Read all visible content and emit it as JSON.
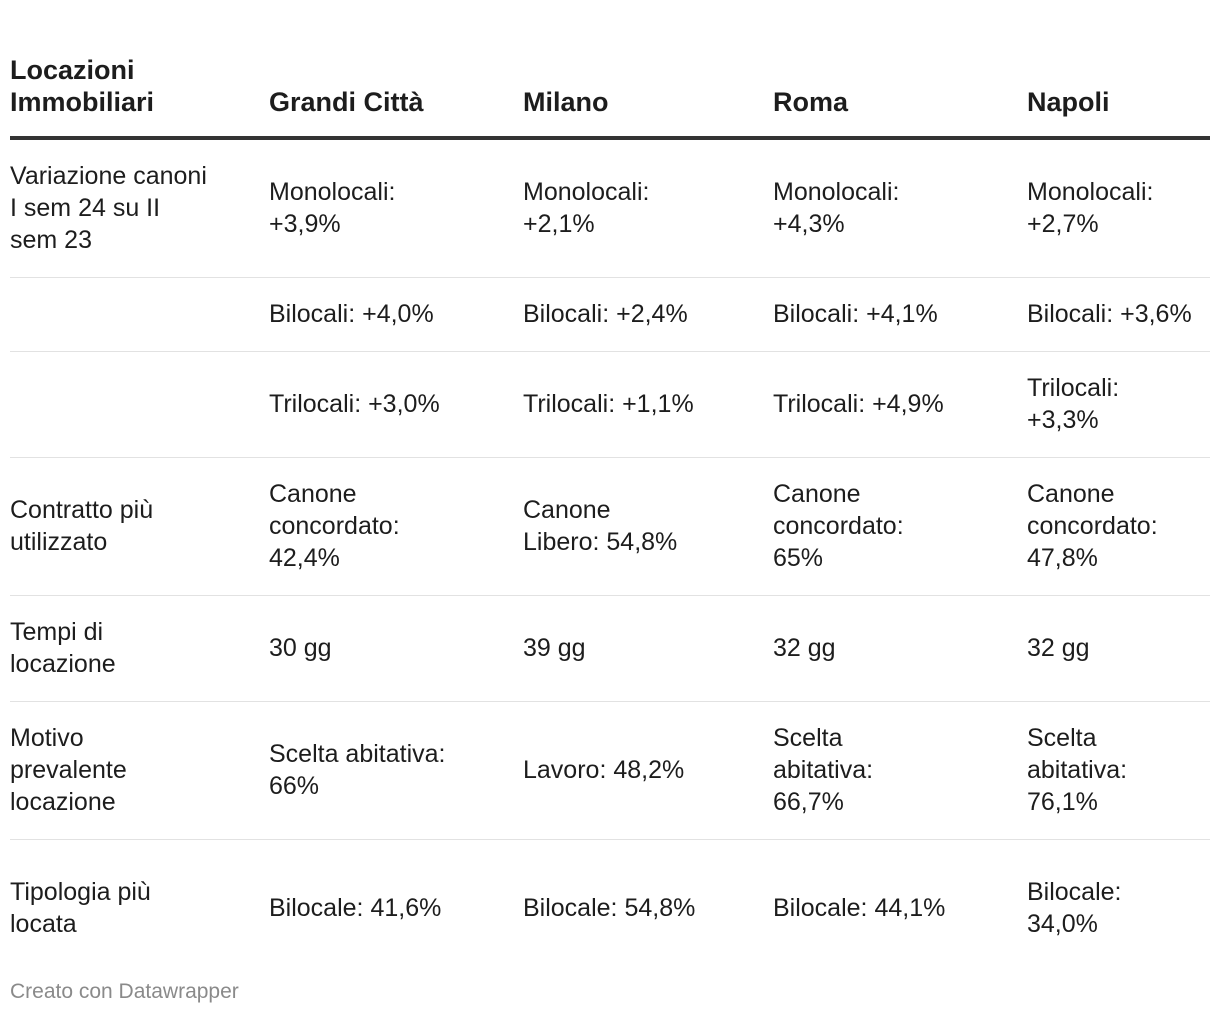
{
  "chart_data": {
    "type": "table",
    "columns": [
      "Locazioni Immobiliari",
      "Grandi Città",
      "Milano",
      "Roma",
      "Napoli"
    ],
    "rows": [
      [
        "Variazione canoni I sem 24 su II sem 23",
        "Monolocali: +3,9%",
        "Monolocali: +2,1%",
        "Monolocali: +4,3%",
        "Monolocali: +2,7%"
      ],
      [
        "",
        "Bilocali: +4,0%",
        "Bilocali: +2,4%",
        "Bilocali: +4,1%",
        "Bilocali: +3,6%"
      ],
      [
        "",
        "Trilocali: +3,0%",
        "Trilocali: +1,1%",
        "Trilocali: +4,9%",
        "Trilocali: +3,3%"
      ],
      [
        "Contratto più utilizzato",
        "Canone concordato: 42,4%",
        "Canone Libero: 54,8%",
        "Canone concordato: 65%",
        "Canone concordato: 47,8%"
      ],
      [
        "Tempi di locazione",
        "30 gg",
        "39 gg",
        "32 gg",
        "32 gg"
      ],
      [
        "Motivo prevalente locazione",
        "Scelta abitativa: 66%",
        "Lavoro: 48,2%",
        "Scelta abitativa: 66,7%",
        "Scelta abitativa: 76,1%"
      ],
      [
        "Tipologia più locata",
        "Bilocale: 41,6%",
        "Bilocale: 54,8%",
        "Bilocale: 44,1%",
        "Bilocale: 34,0%"
      ]
    ],
    "header_border_color": "#333333",
    "row_border_color": "#e2e2e2"
  },
  "footer": {
    "credit": "Creato con Datawrapper"
  }
}
